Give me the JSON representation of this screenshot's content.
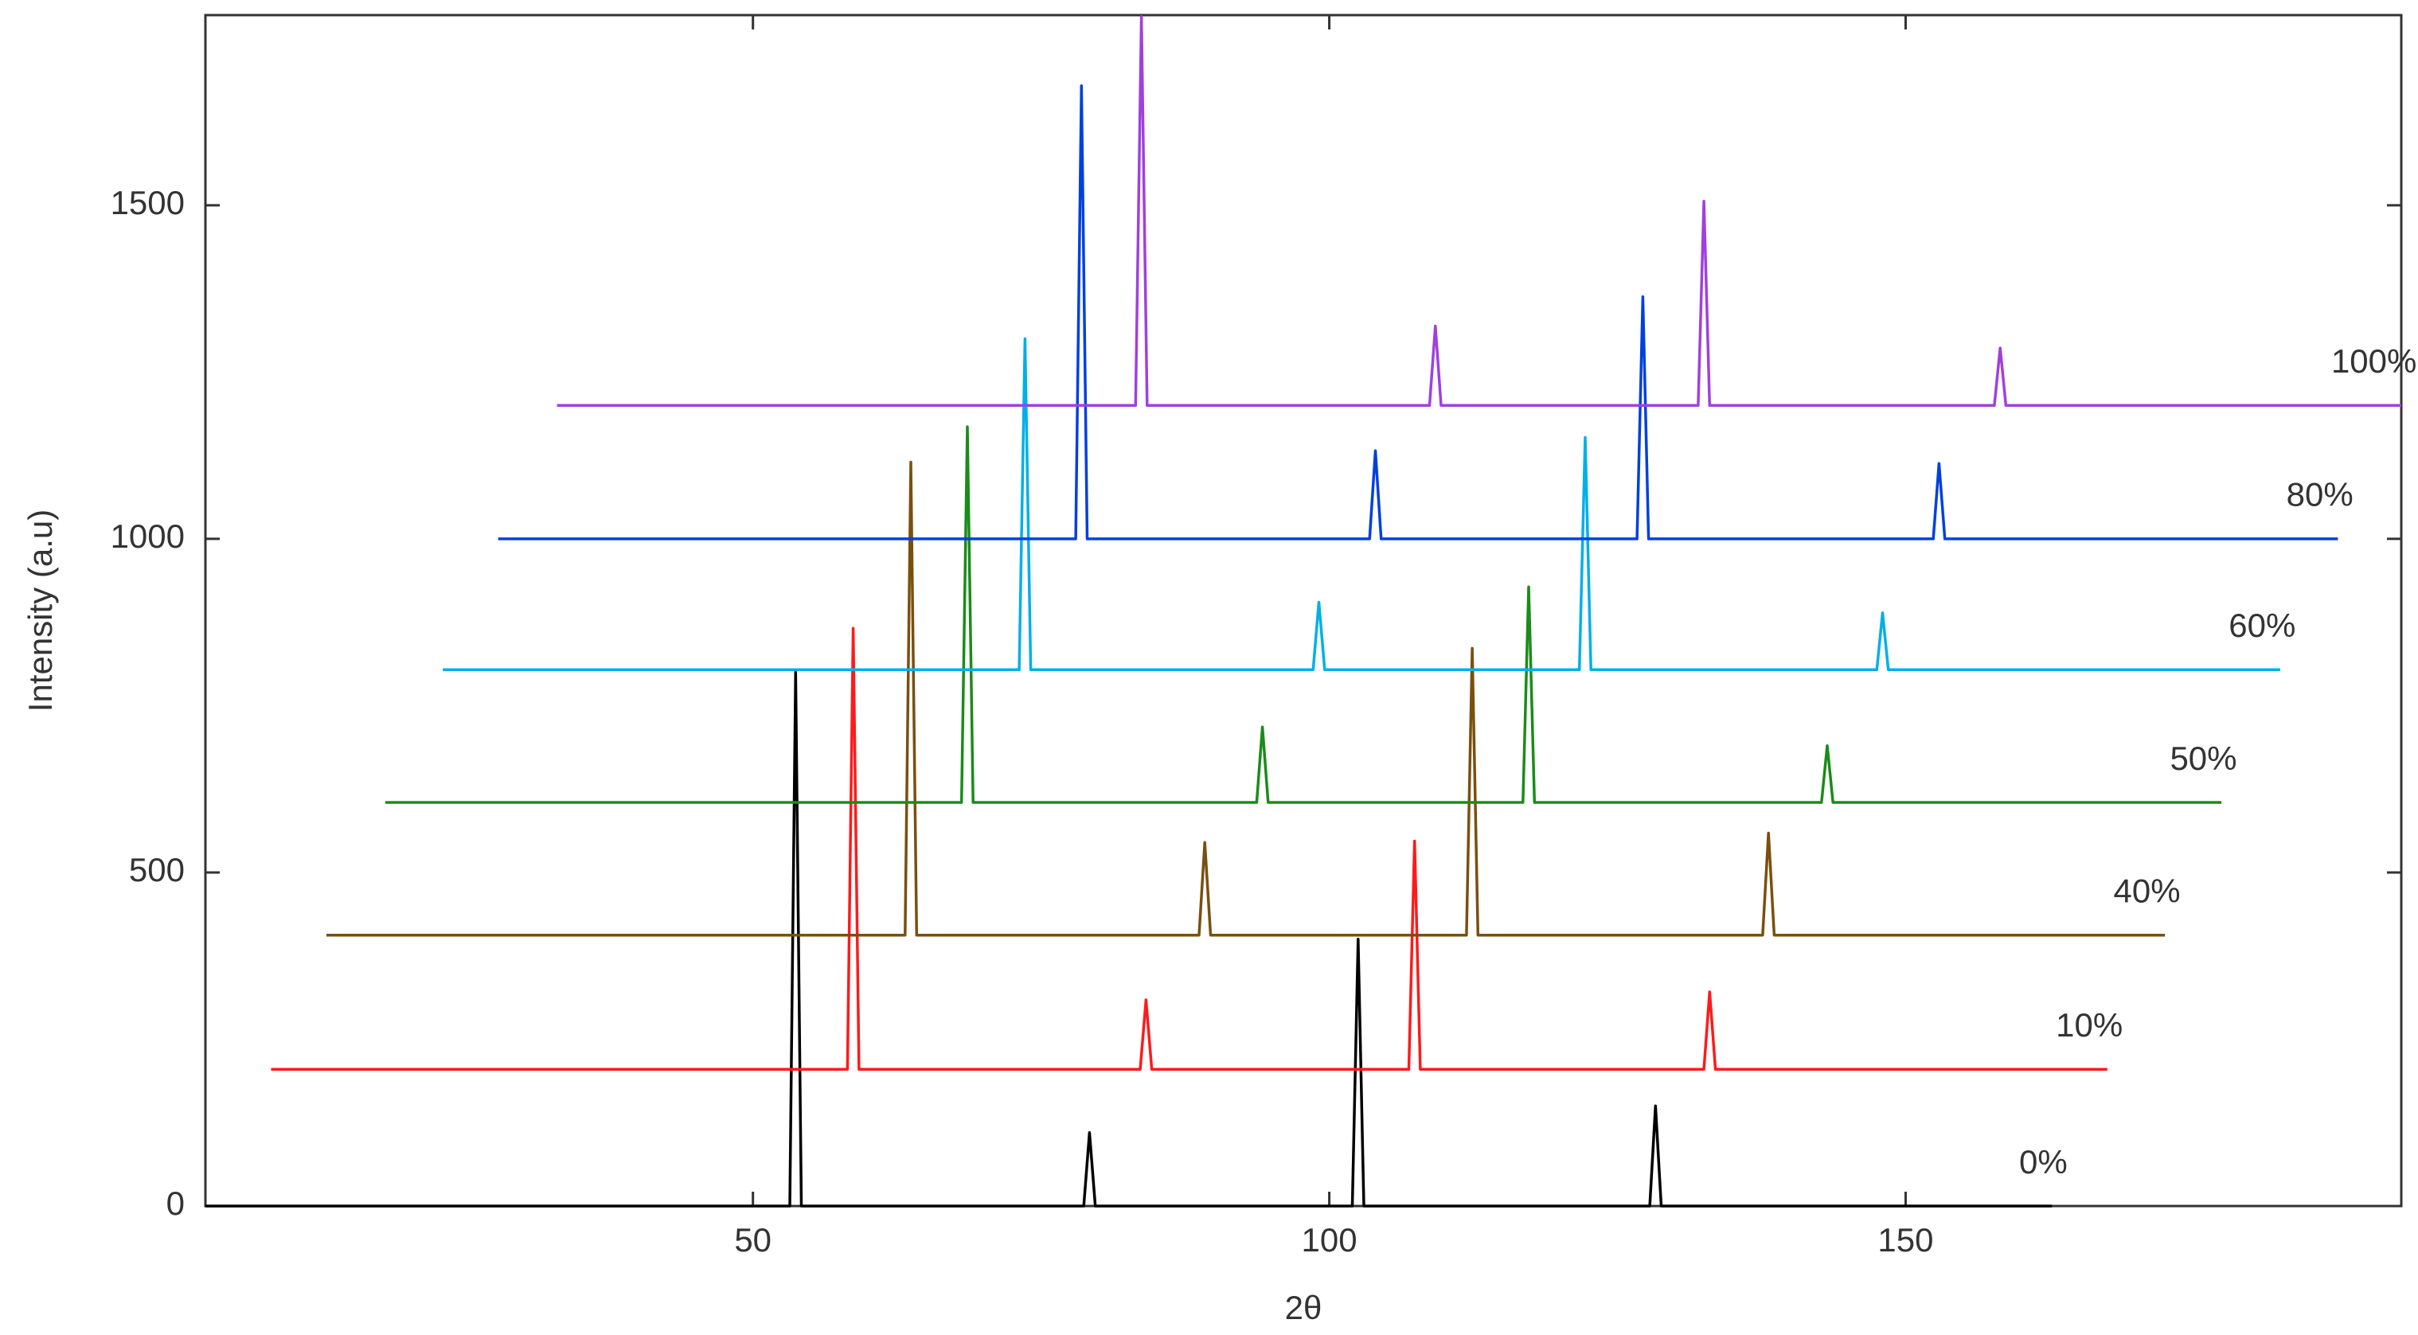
{
  "chart_data": {
    "type": "line",
    "xlabel": "2θ",
    "ylabel": "Intensity (a.u)",
    "xlim": [
      2.5,
      193
    ],
    "ylim": [
      0,
      1785
    ],
    "xticks": [
      50,
      100,
      150
    ],
    "yticks": [
      0,
      500,
      1000,
      1500
    ],
    "series": [
      {
        "name": "0%",
        "color": "#000000",
        "x": [
          2.5,
          53.2,
          53.7,
          54.2,
          78.7,
          79.2,
          79.7,
          102,
          102.5,
          103,
          127.8,
          128.3,
          128.8,
          162.7
        ],
        "values": [
          0,
          0,
          800,
          0,
          0,
          110,
          0,
          0,
          400,
          0,
          0,
          150,
          0,
          0
        ]
      },
      {
        "name": "10%",
        "color": "#ff1a1a",
        "x": [
          8.2,
          58.2,
          58.7,
          59.2,
          83.6,
          84.1,
          84.6,
          106.9,
          107.4,
          107.9,
          132.5,
          133,
          133.5,
          167.5
        ],
        "values": [
          205,
          205,
          866,
          205,
          205,
          309,
          205,
          205,
          547,
          205,
          205,
          321,
          205,
          205
        ]
      },
      {
        "name": "40%",
        "color": "#7a4f0e",
        "x": [
          13,
          63.2,
          63.7,
          64.2,
          88.7,
          89.2,
          89.7,
          111.9,
          112.4,
          112.9,
          137.6,
          138.1,
          138.6,
          172.5
        ],
        "values": [
          406,
          406,
          1115,
          406,
          406,
          545,
          406,
          406,
          836,
          406,
          406,
          559,
          406,
          406
        ]
      },
      {
        "name": "50%",
        "color": "#1a8c1a",
        "x": [
          18.1,
          68.1,
          68.6,
          69.1,
          93.7,
          94.2,
          94.7,
          116.8,
          117.3,
          117.8,
          142.7,
          143.2,
          143.7,
          177.4
        ],
        "values": [
          605,
          605,
          1168,
          605,
          605,
          718,
          605,
          605,
          928,
          605,
          605,
          690,
          605,
          605
        ]
      },
      {
        "name": "60%",
        "color": "#00b0e8",
        "x": [
          23.1,
          73.1,
          73.6,
          74.1,
          98.6,
          99.1,
          99.6,
          121.7,
          122.2,
          122.7,
          147.5,
          148,
          148.5,
          182.5
        ],
        "values": [
          804,
          804,
          1300,
          804,
          804,
          905,
          804,
          804,
          1152,
          804,
          804,
          889,
          804,
          804
        ]
      },
      {
        "name": "80%",
        "color": "#0040e0",
        "x": [
          27.9,
          78,
          78.5,
          79,
          103.5,
          104,
          104.5,
          126.7,
          127.2,
          127.7,
          152.4,
          152.9,
          153.4,
          187.5
        ],
        "values": [
          1000,
          1000,
          1679,
          1000,
          1000,
          1132,
          1000,
          1000,
          1363,
          1000,
          1000,
          1113,
          1000,
          1000
        ]
      },
      {
        "name": "100%",
        "color": "#a040e0",
        "x": [
          33,
          83.2,
          83.7,
          84.2,
          108.7,
          109.2,
          109.7,
          132,
          132.5,
          133,
          157.7,
          158.2,
          158.7,
          193
        ],
        "values": [
          1200,
          1200,
          1783,
          1200,
          1200,
          1319,
          1200,
          1200,
          1506,
          1200,
          1200,
          1286,
          1200,
          1200
        ]
      }
    ]
  }
}
